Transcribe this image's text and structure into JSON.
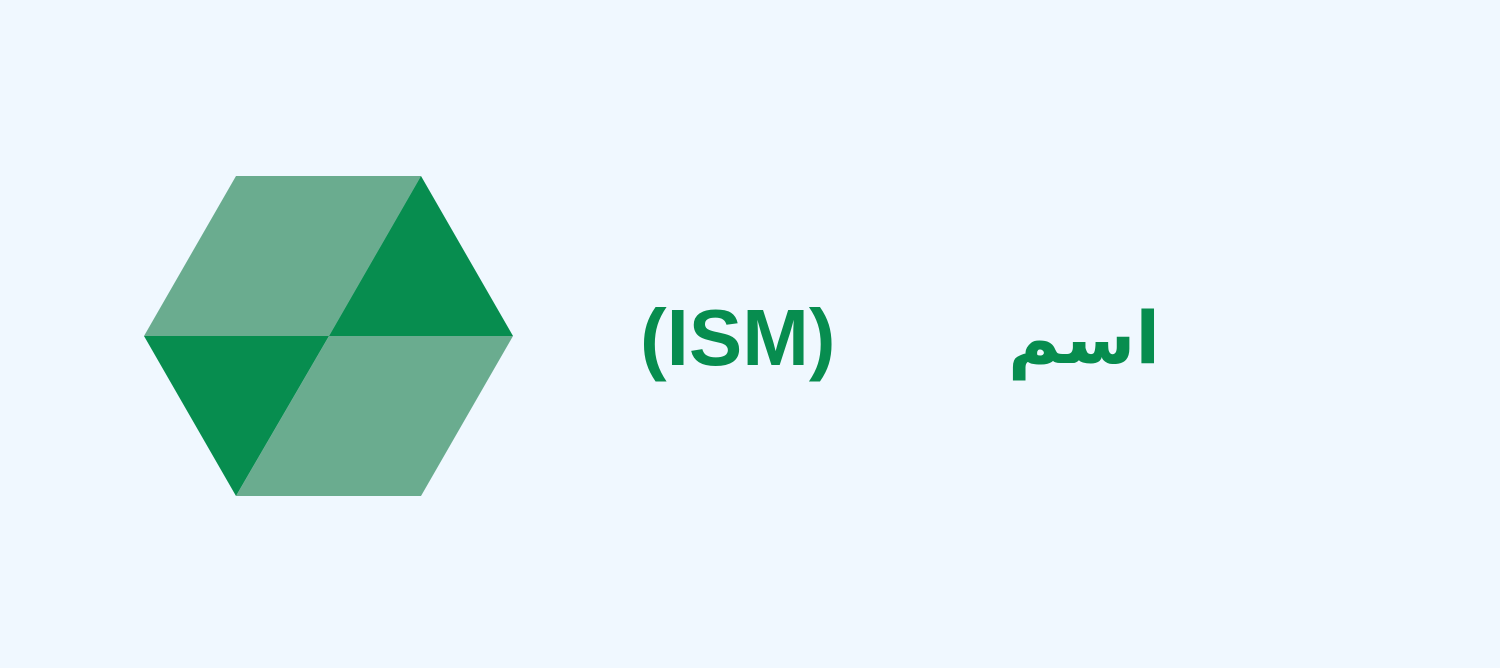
{
  "logo": {
    "icon": "hexagon-cube-icon",
    "colors": {
      "light": "#6aac8f",
      "dark": "#078d4f"
    }
  },
  "text": {
    "abbreviation": "(ISM)",
    "arabic": "اسم",
    "color": "#078d4f"
  },
  "background": "#f0f8ff"
}
